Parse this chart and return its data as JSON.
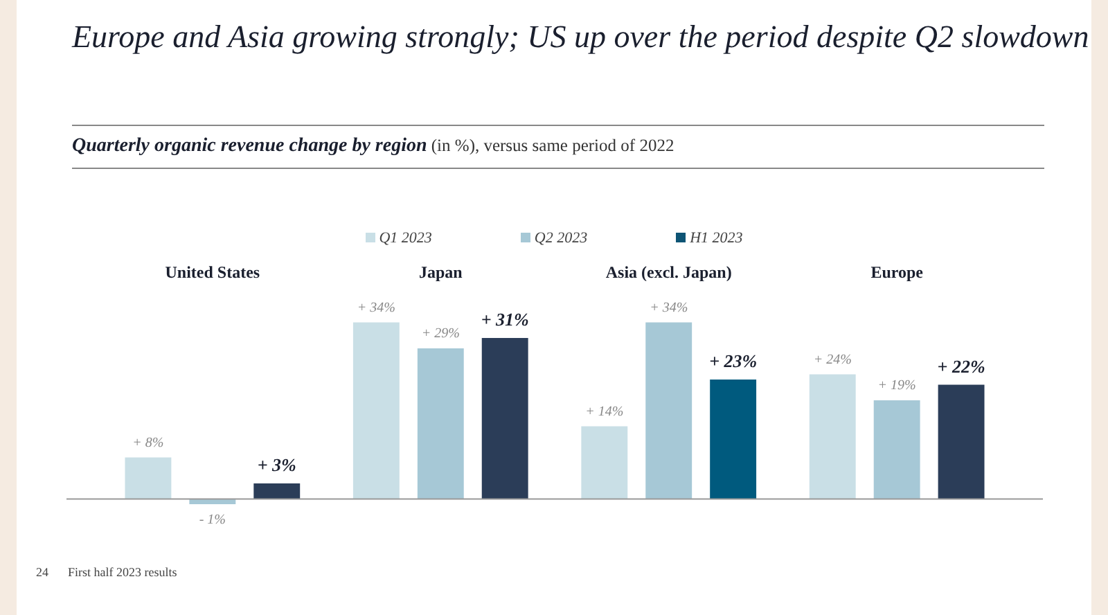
{
  "chart_data": {
    "type": "bar",
    "title": "Europe and Asia growing strongly; US up over the period despite Q2 slowdown",
    "subtitle": "Quarterly organic revenue change by region (in %), versus same period of 2022",
    "categories": [
      "United States",
      "Japan",
      "Asia (excl. Japan)",
      "Europe"
    ],
    "series": [
      {
        "name": "Q1 2023",
        "color": "#c9dfe6",
        "values": [
          8,
          34,
          14,
          24
        ],
        "value_labels": [
          "+ 8%",
          "+ 34%",
          "+ 14%",
          "+ 24%"
        ]
      },
      {
        "name": "Q2 2023",
        "color": "#a6c8d6",
        "values": [
          -1,
          29,
          34,
          19
        ],
        "value_labels": [
          "- 1%",
          "+ 29%",
          "+ 34%",
          "+ 19%"
        ]
      },
      {
        "name": "H1 2023",
        "color": "#0e5475",
        "colors": [
          "#2b3d58",
          "#2b3d58",
          "#005a7e",
          "#2b3d58"
        ],
        "values": [
          3,
          31,
          23,
          22
        ],
        "value_labels": [
          "+ 3%",
          "+ 31%",
          "+ 23%",
          "+ 22%"
        ]
      }
    ],
    "legend": "top",
    "annotations": [
      "24",
      "First half 2023 results"
    ]
  }
}
